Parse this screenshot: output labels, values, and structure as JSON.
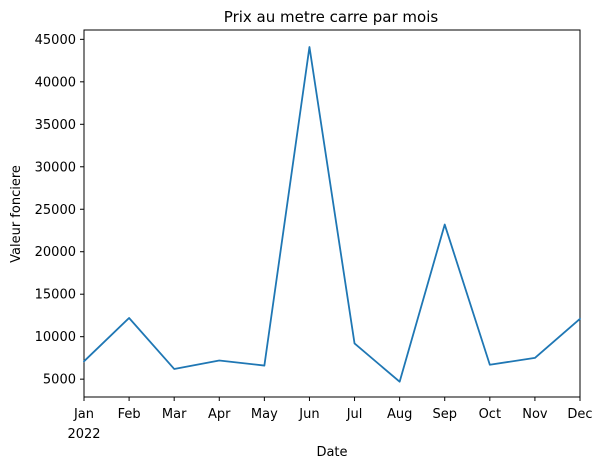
{
  "chart_data": {
    "type": "line",
    "title": "Prix au metre carre par mois",
    "xlabel": "Date",
    "ylabel": "Valeur fonciere",
    "x": [
      "2022-01",
      "2022-02",
      "2022-03",
      "2022-04",
      "2022-05",
      "2022-06",
      "2022-07",
      "2022-08",
      "2022-09",
      "2022-10",
      "2022-11",
      "2022-12"
    ],
    "x_tick_labels": [
      "Jan",
      "Feb",
      "Mar",
      "Apr",
      "May",
      "Jun",
      "Jul",
      "Aug",
      "Sep",
      "Oct",
      "Nov",
      "Dec"
    ],
    "x_year_label": "2022",
    "series": [
      {
        "values": [
          7100,
          12200,
          6200,
          7200,
          6600,
          44100,
          9200,
          4700,
          23200,
          6700,
          7500,
          12100
        ],
        "color": "#1f77b4"
      }
    ],
    "ylim": [
      2900,
      46100
    ],
    "y_ticks": [
      5000,
      10000,
      15000,
      20000,
      25000,
      30000,
      35000,
      40000,
      45000
    ],
    "grid": false
  }
}
